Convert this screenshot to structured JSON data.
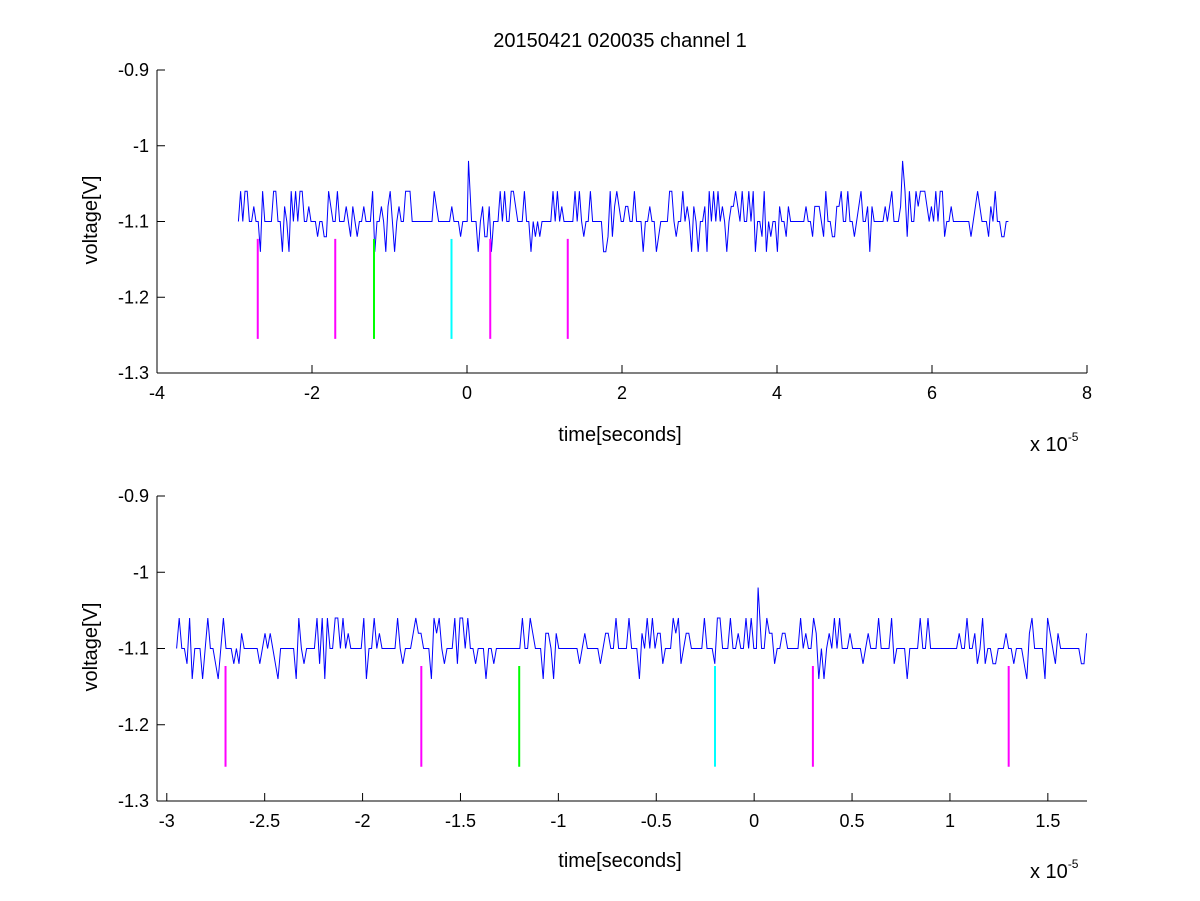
{
  "figure": {
    "title": "20150421 020035 channel 1"
  },
  "chart_data": [
    {
      "type": "line",
      "name": "top",
      "xlabel": "time[seconds]",
      "ylabel": "voltage[V]",
      "x_multiplier_label": "x 10",
      "x_multiplier_exponent": "-5",
      "xlim": [
        -4,
        8
      ],
      "ylim": [
        -1.3,
        -0.9
      ],
      "xticks": [
        -4,
        -2,
        0,
        2,
        4,
        6,
        8
      ],
      "xtick_labels": [
        "-4",
        "-2",
        "0",
        "2",
        "4",
        "6",
        "8"
      ],
      "yticks": [
        -0.9,
        -1,
        -1.1,
        -1.2,
        -1.3
      ],
      "ytick_labels": [
        "-0.9",
        "-1",
        "-1.1",
        "-1.2",
        "-1.3"
      ],
      "signal": {
        "color": "#0000ff",
        "x_start": -2.95,
        "x_end": 7.0,
        "baseline": -1.1,
        "levels": [
          -1.06,
          -1.08,
          -1.1,
          -1.12,
          -1.14
        ],
        "spikes": [
          {
            "x": 0.02,
            "y": -1.02
          },
          {
            "x": 5.62,
            "y": -1.02
          }
        ]
      },
      "markers": [
        {
          "x": -2.7,
          "y_top": -1.123,
          "y_bottom": -1.255,
          "color": "#ff00ff"
        },
        {
          "x": -1.7,
          "y_top": -1.123,
          "y_bottom": -1.255,
          "color": "#ff00ff"
        },
        {
          "x": -1.2,
          "y_top": -1.123,
          "y_bottom": -1.255,
          "color": "#00ff00"
        },
        {
          "x": -0.2,
          "y_top": -1.123,
          "y_bottom": -1.255,
          "color": "#00ffff"
        },
        {
          "x": 0.3,
          "y_top": -1.123,
          "y_bottom": -1.255,
          "color": "#ff00ff"
        },
        {
          "x": 1.3,
          "y_top": -1.123,
          "y_bottom": -1.255,
          "color": "#ff00ff"
        }
      ]
    },
    {
      "type": "line",
      "name": "bottom",
      "xlabel": "time[seconds]",
      "ylabel": "voltage[V]",
      "x_multiplier_label": "x 10",
      "x_multiplier_exponent": "-5",
      "xlim": [
        -3.05,
        1.7
      ],
      "ylim": [
        -1.3,
        -0.9
      ],
      "xticks": [
        -3,
        -2.5,
        -2,
        -1.5,
        -1,
        -0.5,
        0,
        0.5,
        1,
        1.5
      ],
      "xtick_labels": [
        "-3",
        "-2.5",
        "-2",
        "-1.5",
        "-1",
        "-0.5",
        "0",
        "0.5",
        "1",
        "1.5"
      ],
      "yticks": [
        -0.9,
        -1,
        -1.1,
        -1.2,
        -1.3
      ],
      "ytick_labels": [
        "-0.9",
        "-1",
        "-1.1",
        "-1.2",
        "-1.3"
      ],
      "signal": {
        "color": "#0000ff",
        "x_start": -2.95,
        "x_end": 1.7,
        "baseline": -1.1,
        "levels": [
          -1.06,
          -1.08,
          -1.1,
          -1.12,
          -1.14
        ],
        "spikes": [
          {
            "x": 0.02,
            "y": -1.02
          }
        ]
      },
      "markers": [
        {
          "x": -2.7,
          "y_top": -1.123,
          "y_bottom": -1.255,
          "color": "#ff00ff"
        },
        {
          "x": -1.7,
          "y_top": -1.123,
          "y_bottom": -1.255,
          "color": "#ff00ff"
        },
        {
          "x": -1.2,
          "y_top": -1.123,
          "y_bottom": -1.255,
          "color": "#00ff00"
        },
        {
          "x": -0.2,
          "y_top": -1.123,
          "y_bottom": -1.255,
          "color": "#00ffff"
        },
        {
          "x": 0.3,
          "y_top": -1.123,
          "y_bottom": -1.255,
          "color": "#ff00ff"
        },
        {
          "x": 1.3,
          "y_top": -1.123,
          "y_bottom": -1.255,
          "color": "#ff00ff"
        }
      ]
    }
  ]
}
